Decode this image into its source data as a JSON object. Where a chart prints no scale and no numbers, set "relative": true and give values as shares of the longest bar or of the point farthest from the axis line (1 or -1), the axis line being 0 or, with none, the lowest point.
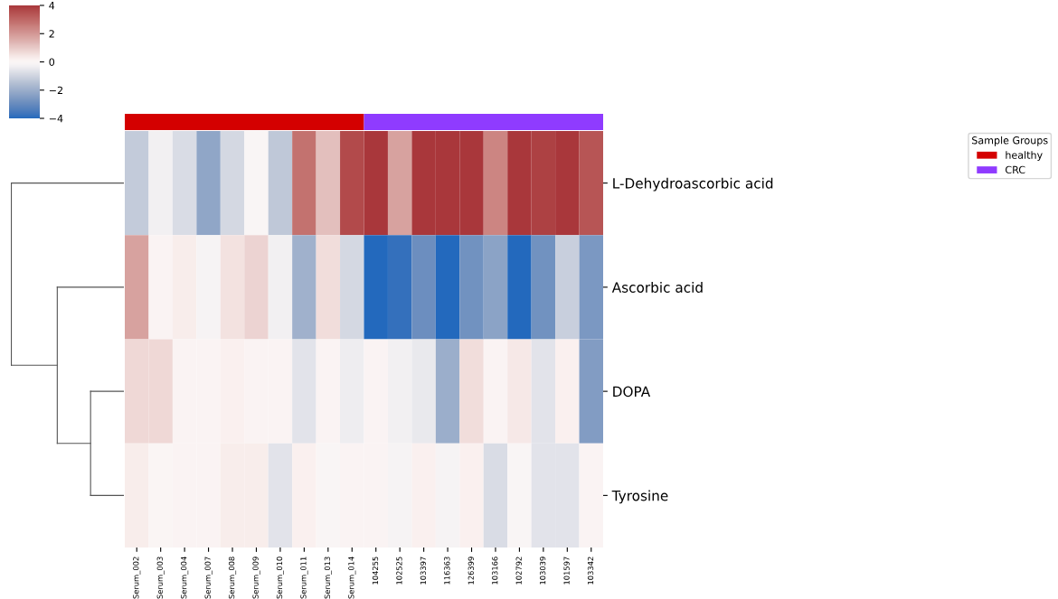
{
  "chart_data": [
    {
      "type": "heatmap",
      "categories": [
        "Serum_002",
        "Serum_003",
        "Serum_004",
        "Serum_007",
        "Serum_008",
        "Serum_009",
        "Serum_010",
        "Serum_011",
        "Serum_013",
        "Serum_014",
        "104255",
        "102525",
        "103397",
        "116363",
        "126399",
        "103166",
        "102792",
        "103039",
        "101597",
        "103342"
      ],
      "y_categories": [
        "L-Dehydroascorbic acid",
        "Ascorbic acid",
        "DOPA",
        "Tyrosine"
      ],
      "cells": [
        [
          -1.2,
          -0.3,
          -0.8,
          -2.2,
          -0.9,
          -0.1,
          -1.3,
          2.8,
          1.2,
          3.6,
          4,
          1.8,
          4,
          4,
          4,
          2.4,
          4,
          3.8,
          4,
          3.4
        ],
        [
          1.8,
          0.1,
          0.3,
          -0.2,
          0.5,
          0.8,
          -0.3,
          -1.9,
          0.6,
          -0.9,
          -4,
          -3.8,
          -2.9,
          -4,
          -2.8,
          -2.3,
          -4,
          -2.8,
          -1.1,
          -2.6
        ],
        [
          0.7,
          0.7,
          0.1,
          0.1,
          0.2,
          0.1,
          0.1,
          -0.6,
          0.1,
          -0.4,
          0.1,
          -0.3,
          -0.5,
          -2.0,
          0.6,
          0.1,
          0.4,
          -0.6,
          0.2,
          -2.5
        ],
        [
          0.3,
          0.0,
          0.1,
          0.1,
          0.3,
          0.3,
          -0.6,
          0.2,
          -0.1,
          0.1,
          0.1,
          -0.2,
          0.2,
          -0.2,
          0.2,
          -0.8,
          -0.1,
          -0.6,
          -0.6,
          0.1
        ]
      ],
      "clim": [
        -4,
        4
      ],
      "cticks": [
        {
          "value": -4,
          "label": "−4"
        },
        {
          "value": -2,
          "label": "−2"
        },
        0,
        2,
        4
      ]
    },
    {
      "type": "bar",
      "orientation": "horizontal",
      "stacked": true,
      "relative": true,
      "tick_labels": false,
      "legend": "right",
      "legend_title": "Sample Groups",
      "categories": [
        null
      ],
      "series": [
        {
          "name": "healthy",
          "color": "#d40000",
          "values": [
            0.5
          ]
        },
        {
          "name": "CRC",
          "color": "#8f3bff",
          "values": [
            0.5
          ]
        }
      ]
    }
  ]
}
